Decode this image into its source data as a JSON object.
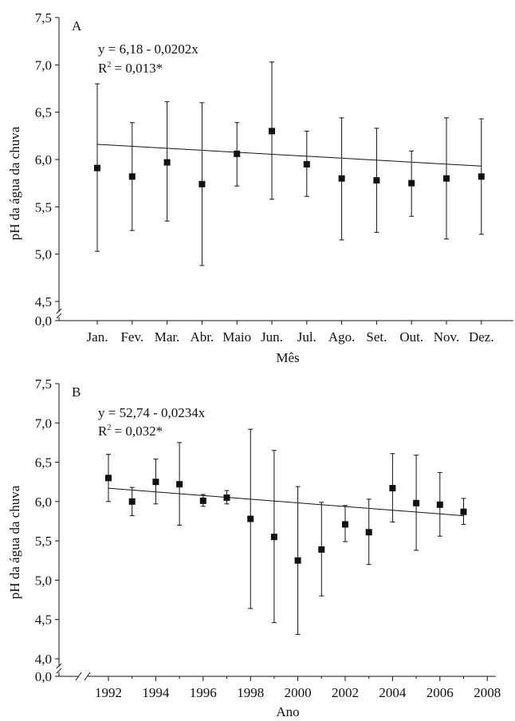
{
  "chart_data": [
    {
      "type": "scatter",
      "panel_label": "A",
      "xlabel": "Mês",
      "ylabel": "pH da água da chuva",
      "categories": [
        "Jan.",
        "Fev.",
        "Mar.",
        "Abr.",
        "Maio",
        "Jun.",
        "Jul.",
        "Ago.",
        "Set.",
        "Out.",
        "Nov.",
        "Dez."
      ],
      "values": [
        5.91,
        5.82,
        5.97,
        5.74,
        6.06,
        6.3,
        5.95,
        5.8,
        5.78,
        5.75,
        5.8,
        5.82
      ],
      "error_low": [
        5.03,
        5.25,
        5.35,
        4.88,
        5.72,
        5.58,
        5.61,
        5.15,
        5.23,
        5.4,
        5.16,
        5.21
      ],
      "error_high": [
        6.8,
        6.39,
        6.61,
        6.6,
        6.39,
        7.03,
        6.3,
        6.44,
        6.33,
        6.09,
        6.44,
        6.43
      ],
      "trend": {
        "from": [
          1,
          6.16
        ],
        "to": [
          12,
          5.93
        ],
        "equation": "y = 6,18 - 0,0202x",
        "r2_label": "R",
        "r2_exp": "2",
        "r2_value": " = 0,013*"
      },
      "ylim": [
        4.5,
        7.5
      ],
      "yticks": [
        "0,0",
        "4,5",
        "5,0",
        "5,5",
        "6,0",
        "6,5",
        "7,0",
        "7,5"
      ],
      "y_axis_break": true
    },
    {
      "type": "scatter",
      "panel_label": "B",
      "xlabel": "Ano",
      "ylabel": "pH da água da chuva",
      "x": [
        1992,
        1993,
        1994,
        1995,
        1996,
        1997,
        1998,
        1999,
        2000,
        2001,
        2002,
        2003,
        2004,
        2005,
        2006,
        2007
      ],
      "values": [
        6.3,
        6.0,
        6.25,
        6.22,
        6.01,
        6.05,
        5.78,
        5.55,
        5.25,
        5.39,
        5.71,
        5.61,
        6.17,
        5.98,
        5.96,
        5.87
      ],
      "error_low": [
        6.0,
        5.82,
        5.97,
        5.7,
        5.94,
        5.97,
        4.64,
        4.46,
        4.31,
        4.8,
        5.49,
        5.2,
        5.74,
        5.38,
        5.56,
        5.71
      ],
      "error_high": [
        6.6,
        6.18,
        6.54,
        6.75,
        6.09,
        6.14,
        6.92,
        6.65,
        6.19,
        5.99,
        5.95,
        6.03,
        6.61,
        6.59,
        6.37,
        6.04
      ],
      "trend": {
        "from": [
          1992,
          6.17
        ],
        "to": [
          2007,
          5.82
        ],
        "equation": "y = 52,74 - 0,0234x",
        "r2_label": "R",
        "r2_exp": "2",
        "r2_value": " = 0,032*"
      },
      "xticks": [
        "1992",
        "1994",
        "1996",
        "1998",
        "2000",
        "2002",
        "2004",
        "2006",
        "2008"
      ],
      "ylim": [
        4.0,
        7.5
      ],
      "yticks": [
        "0,0",
        "4,0",
        "4,5",
        "5,0",
        "5,5",
        "6,0",
        "6,5",
        "7,0",
        "7,5"
      ],
      "y_axis_break": true,
      "x_axis_break": true
    }
  ]
}
